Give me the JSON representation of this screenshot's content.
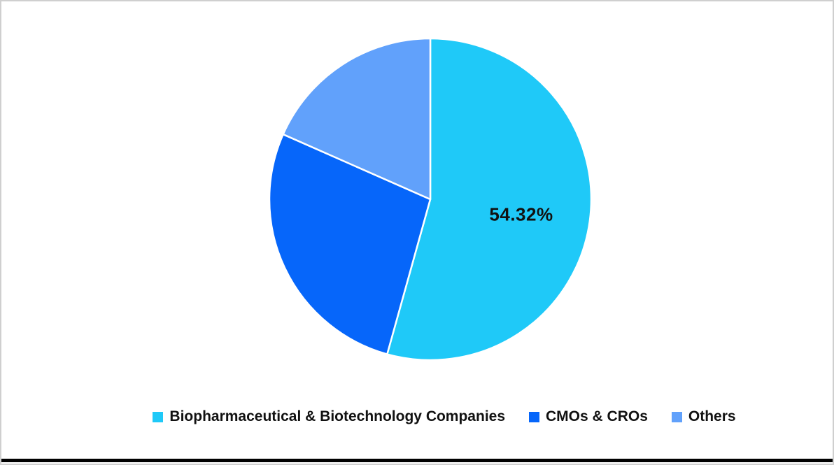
{
  "canvas": {
    "background": "#FFFFFF",
    "border_color": "#CFCFCF",
    "bottom_bar_color": "#000000"
  },
  "chart_data": {
    "type": "pie",
    "title": "",
    "start_angle_deg": 0,
    "direction": "clockwise",
    "slice_border_color": "#FFFFFF",
    "legend_position": "bottom",
    "label_color": "#111111",
    "slices": [
      {
        "label": "Biopharmaceutical & Biotechnology Companies",
        "value": 54.32,
        "color": "#1FC9F8",
        "data_label": "54.32%"
      },
      {
        "label": "CMOs & CROs",
        "value": 27.3,
        "color": "#0666FA",
        "data_label": ""
      },
      {
        "label": "Others",
        "value": 18.38,
        "color": "#61A1FB",
        "data_label": ""
      }
    ]
  }
}
